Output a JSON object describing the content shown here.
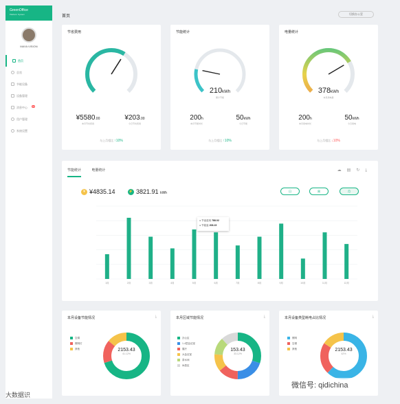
{
  "brand": {
    "line1": "GreenOffice",
    "line2": "Platform System"
  },
  "user": {
    "name": "MAYA VISION"
  },
  "nav": [
    {
      "label": "首页"
    },
    {
      "label": "总览"
    },
    {
      "label": "节能设备"
    },
    {
      "label": "设备管理"
    },
    {
      "label": "消息中心",
      "badge": "10"
    },
    {
      "label": "用户管理"
    },
    {
      "label": "系统设置"
    }
  ],
  "header": {
    "title": "首页",
    "button": "切换办公室"
  },
  "gauges": [
    {
      "title": "节省费用",
      "stat1": {
        "value": "¥5580",
        "unit": ".00",
        "label": "本月节省费用"
      },
      "stat2": {
        "value": "¥203",
        "unit": ".00",
        "label": "今日节省费用"
      },
      "compare": "与上月相比",
      "delta": "10%",
      "trend": "up",
      "level": 0.62
    },
    {
      "title": "节能统计",
      "value": "210",
      "unit": "kWh",
      "caption": "累计节能",
      "stat1": {
        "value": "200",
        "unit": "h",
        "label": "本月节能时长"
      },
      "stat2": {
        "value": "50",
        "unit": "kWh",
        "label": "今日节能"
      },
      "compare": "与上月相比",
      "delta": "10%",
      "trend": "up",
      "level": 0.21
    },
    {
      "title": "电量统计",
      "value": "378",
      "unit": "kWh",
      "caption": "本月用电量",
      "stat1": {
        "value": "200",
        "unit": "h",
        "label": "本月用电时长"
      },
      "stat2": {
        "value": "50",
        "unit": "kWh",
        "label": "今日用电"
      },
      "compare": "与上月相比",
      "delta": "10%",
      "trend": "down",
      "level": 0.72
    }
  ],
  "energy": {
    "tabs": [
      "节能统计",
      "电量统计"
    ],
    "total1": "¥4835.14",
    "total2": "3821.91",
    "total2_unit": "kWh",
    "periods": [
      "日",
      "周",
      "月"
    ],
    "selected_period": "月",
    "tooltip": {
      "label1": "节省费用",
      "value1": "788.02",
      "label2": "节能量",
      "value2": "208.15"
    }
  },
  "chart_data": {
    "type": "bar",
    "categories": [
      "1月",
      "2月",
      "3月",
      "4月",
      "5月",
      "6月",
      "7月",
      "8月",
      "9月",
      "10月",
      "11月",
      "12月"
    ],
    "values": [
      17,
      42,
      29,
      21,
      34,
      32,
      23,
      29,
      38,
      14,
      32,
      24
    ],
    "ylim": [
      0,
      50
    ],
    "color": "#1fb088"
  },
  "donuts": [
    {
      "title": "本月设备节能情况",
      "value": "2153.43",
      "pct": "41.12%",
      "legend": [
        "空调",
        "照明灯",
        "其他"
      ],
      "segments": [
        0.7,
        0.16,
        0.14
      ],
      "colors": [
        "#17b585",
        "#f0625d",
        "#f5c34a"
      ]
    },
    {
      "title": "本月区域节能情况",
      "value": "153.43",
      "pct": "33.12%",
      "legend": [
        "办公区",
        "1-4层会议室",
        "展厅",
        "大会议室",
        "茶水间",
        "休息区"
      ],
      "segments": [
        0.3,
        0.2,
        0.14,
        0.12,
        0.12,
        0.12
      ],
      "colors": [
        "#17b585",
        "#3a8ee6",
        "#f0625d",
        "#f5c34a",
        "#b8d97a",
        "#d9d9d9"
      ]
    },
    {
      "title": "本月设备类型耗电占比情况",
      "value": "2153.43",
      "pct": "42%",
      "legend": [
        "照明",
        "空调",
        "其他"
      ],
      "segments": [
        0.62,
        0.22,
        0.16
      ],
      "colors": [
        "#3ab4e6",
        "#f0625d",
        "#f5c34a"
      ]
    }
  ],
  "watermark": "微信号: qidichina",
  "watermark2": "大数据识"
}
